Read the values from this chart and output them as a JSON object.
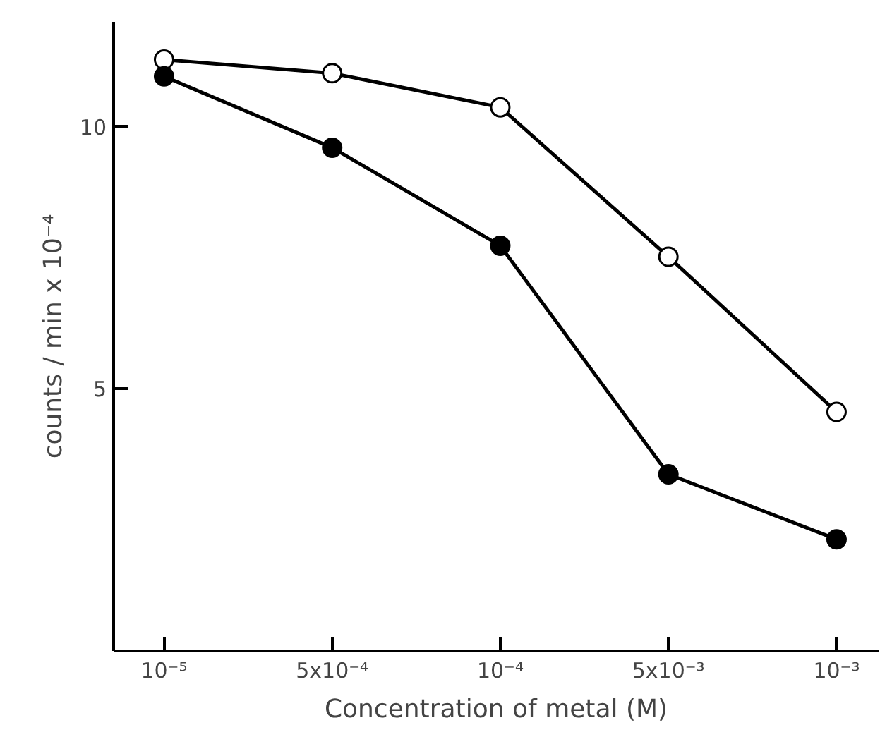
{
  "chart_data": {
    "type": "line",
    "xlabel": "Concentration of metal (M)",
    "ylabel": "counts / min x 10⁻⁴",
    "categories": [
      "10⁻⁵",
      "5x10⁻⁴",
      "10⁻⁴",
      "5x10⁻³",
      "10⁻³"
    ],
    "series": [
      {
        "color": "#000000",
        "values": [
          11.28,
          11.02,
          10.37,
          7.52,
          4.56
        ]
      },
      {
        "color": "#000000",
        "values": [
          10.96,
          9.6,
          7.73,
          3.37,
          2.13
        ]
      }
    ],
    "ylim": [
      0,
      12
    ],
    "yticks": [
      5,
      10
    ],
    "grid": false,
    "marker": "circle",
    "line_style": "solid"
  }
}
